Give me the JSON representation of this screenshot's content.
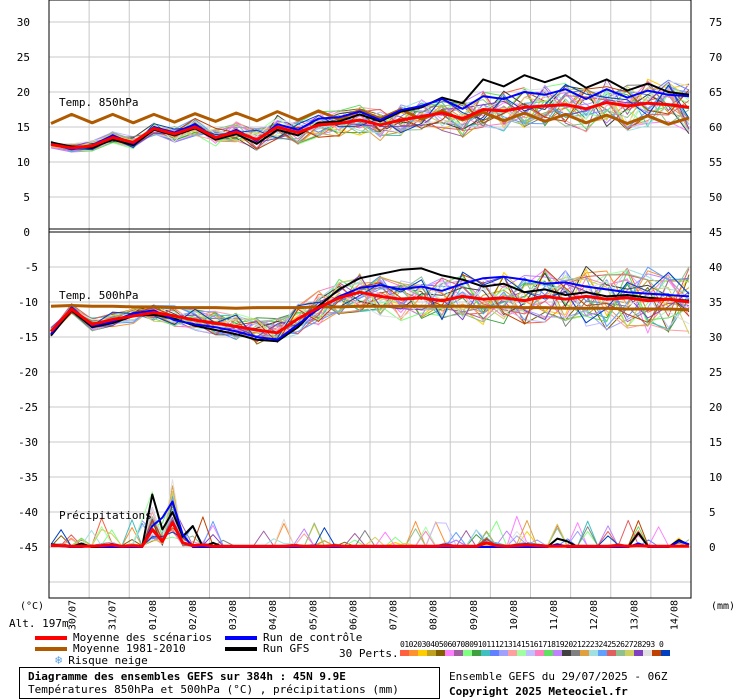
{
  "chart_data": {
    "type": "line",
    "title": "Diagramme des ensembles GEFS sur 384h : 45N 9.9E",
    "subtitle": "Températures 850hPa et 500hPa (°C) , précipitations (mm)",
    "left_axis_unit": "(°C)",
    "right_axis_unit": "(mm)",
    "altitude": "Alt. 197m",
    "left_ticks_top": [
      "30",
      "25",
      "20",
      "15",
      "10",
      "5",
      "0"
    ],
    "left_ticks_bottom": [
      "-5",
      "-10",
      "-15",
      "-20",
      "-25",
      "-30",
      "-35",
      "-40",
      "-45"
    ],
    "right_ticks_top": [
      "75",
      "70",
      "65",
      "60",
      "55",
      "50",
      "45"
    ],
    "right_ticks_bottom": [
      "40",
      "35",
      "30",
      "25",
      "20",
      "15",
      "10",
      "5",
      "0"
    ],
    "x_labels": [
      "30/07",
      "31/07",
      "01/08",
      "02/08",
      "03/08",
      "04/08",
      "05/08",
      "06/08",
      "07/08",
      "08/08",
      "09/08",
      "10/08",
      "11/08",
      "12/08",
      "13/08",
      "14/08"
    ],
    "panel_labels": {
      "t850": "Temp. 850hPa",
      "t500": "Temp. 500hPa",
      "precip": "Précipitations"
    },
    "series": [
      {
        "name": "Moyenne des scénarios",
        "group": "t850",
        "values": [
          12.5,
          12,
          12.3,
          13.5,
          12.8,
          14.8,
          14,
          15,
          13.5,
          14.3,
          13.2,
          15,
          14.2,
          15.3,
          15.5,
          16,
          15.3,
          16,
          16.5,
          17,
          16.2,
          17.5,
          17.3,
          17.8,
          18,
          18.2,
          17.6,
          18.5,
          18,
          18.4,
          18.2,
          17.8
        ]
      },
      {
        "name": "Moyenne 1981-2010",
        "group": "t850",
        "values": [
          15.5,
          16.8,
          15.6,
          16.8,
          15.6,
          16.8,
          15.7,
          16.9,
          15.8,
          17,
          15.9,
          17.2,
          16,
          17.3,
          16.1,
          17.4,
          16.2,
          17.5,
          16.1,
          17.3,
          16,
          17.1,
          15.9,
          17,
          15.8,
          16.8,
          15.6,
          16.7,
          15.5,
          16.6,
          15.4,
          16.3
        ]
      },
      {
        "name": "Run de contrôle",
        "group": "t850",
        "values": [
          12.6,
          11.8,
          12.4,
          13.8,
          12.6,
          15,
          14.2,
          15.4,
          13.4,
          14.6,
          13,
          15.4,
          14.6,
          16.2,
          16.4,
          17.2,
          16,
          17.4,
          18,
          19,
          17.6,
          19.4,
          19,
          20,
          19.6,
          20.4,
          19,
          20.4,
          19.2,
          20.2,
          19.6,
          19.4
        ]
      },
      {
        "name": "Run GFS",
        "group": "t850",
        "values": [
          12.8,
          12.2,
          12,
          13.2,
          12.4,
          14.6,
          13.8,
          14.8,
          13.2,
          14,
          12.6,
          14.6,
          13.8,
          15.6,
          15.8,
          16.8,
          15.8,
          17.2,
          17.8,
          19.2,
          18.4,
          21.8,
          20.8,
          22.4,
          21.4,
          22.4,
          20.6,
          21.8,
          20.2,
          21.2,
          20,
          19.6
        ]
      },
      {
        "name": "Moyenne des scénarios",
        "group": "t500",
        "values": [
          -14.2,
          -11,
          -13.2,
          -12.5,
          -12,
          -11.5,
          -12,
          -12.6,
          -13,
          -13.5,
          -14,
          -14.4,
          -12.4,
          -10.8,
          -9.4,
          -8.6,
          -9.2,
          -9.6,
          -9.4,
          -9.8,
          -9.2,
          -9.6,
          -9.4,
          -9.8,
          -9.2,
          -9.6,
          -9.2,
          -9.6,
          -9.4,
          -9.8,
          -9.6,
          -10
        ]
      },
      {
        "name": "Moyenne 1981-2010",
        "group": "t500",
        "values": [
          -10.6,
          -10.5,
          -10.6,
          -10.6,
          -10.7,
          -10.7,
          -10.8,
          -10.8,
          -10.8,
          -10.9,
          -10.8,
          -10.8,
          -10.8,
          -10.7,
          -10.7,
          -10.6,
          -10.6,
          -10.6,
          -10.6,
          -10.6,
          -10.6,
          -10.7,
          -10.7,
          -10.8,
          -10.8,
          -10.9,
          -10.9,
          -10.9,
          -11,
          -11,
          -11,
          -11.1
        ]
      },
      {
        "name": "Run de contrôle",
        "group": "t500",
        "values": [
          -14.6,
          -10.8,
          -13.4,
          -12.8,
          -11.6,
          -11.2,
          -12.6,
          -13.2,
          -13.6,
          -14.2,
          -15,
          -15.4,
          -13.2,
          -11,
          -9.2,
          -8,
          -7.6,
          -8.2,
          -7.8,
          -8.4,
          -7.4,
          -6.6,
          -6.4,
          -6.8,
          -7.4,
          -7.2,
          -7.8,
          -8.2,
          -8.6,
          -8.8,
          -9,
          -9.2
        ]
      },
      {
        "name": "Run GFS",
        "group": "t500",
        "values": [
          -14.8,
          -11.2,
          -13.6,
          -13,
          -12,
          -11.8,
          -12.4,
          -13.4,
          -14,
          -14.6,
          -15.4,
          -15.6,
          -13.6,
          -10.6,
          -8.2,
          -6.6,
          -6,
          -5.4,
          -5.2,
          -6.2,
          -6.8,
          -7.8,
          -7.4,
          -8.6,
          -8.2,
          -9,
          -8.6,
          -9.2,
          -9,
          -9.4,
          -9.6,
          -9.8
        ]
      },
      {
        "name": "Moyenne des scénarios",
        "group": "precip",
        "values": [
          0.2,
          0.2,
          0.1,
          0.1,
          0.1,
          0.2,
          0.3,
          0.1,
          0.2,
          0.1,
          2.5,
          0.8,
          3.5,
          0.6,
          0.2,
          0.3,
          0.1,
          0.1,
          0.1,
          0.1,
          0.1,
          0.1,
          0.1,
          0.1,
          0.2,
          0.1,
          0.1,
          0.1,
          0.2,
          0.1,
          0.1,
          0.1,
          0.1,
          0.1,
          0.1,
          0.1,
          0.1,
          0.1,
          0.1,
          0.2,
          0.1,
          0.1,
          0.1,
          0.6,
          0.2,
          0.1,
          0.2,
          0.3,
          0.2,
          0.1,
          0.1,
          0.1,
          0.1,
          0.1,
          0.1,
          0.1,
          0.2,
          0.1,
          0.2,
          0.1,
          0.1,
          0.1,
          0.1,
          0.1
        ]
      },
      {
        "name": "Run GFS",
        "group": "precip",
        "values": [
          0.4,
          0.2,
          0,
          0.5,
          0,
          0,
          0.3,
          0,
          0,
          0,
          7.5,
          2.5,
          5,
          1.5,
          3,
          0,
          0.6,
          0,
          0,
          0,
          0,
          0,
          0,
          0,
          0,
          0,
          0,
          0,
          0,
          0,
          0,
          0,
          0,
          0,
          0,
          0,
          0,
          0,
          0,
          0,
          0,
          0,
          0,
          0,
          0,
          0,
          0,
          0,
          0,
          0,
          1.2,
          0.8,
          0,
          0,
          0,
          0,
          0,
          0,
          2,
          0,
          0,
          0,
          1,
          0.3
        ]
      },
      {
        "name": "Run de contrôle",
        "group": "precip",
        "values": [
          0.3,
          0.1,
          0,
          0,
          0.2,
          0,
          0,
          0,
          0,
          0,
          3,
          4.2,
          6.5,
          1.8,
          0,
          0,
          0,
          0,
          0,
          0,
          0,
          0,
          0,
          0,
          0,
          0,
          0,
          0,
          0,
          0,
          0,
          0,
          0,
          0,
          0,
          0,
          0,
          0,
          0,
          0,
          0,
          0,
          0,
          0,
          0,
          0,
          0,
          0,
          0,
          0,
          0.4,
          0,
          0,
          0,
          0,
          0,
          0,
          0,
          0.5,
          0,
          0,
          0,
          0.8,
          0.4
        ]
      }
    ],
    "y_ranges": {
      "t850": [
        0,
        30
      ],
      "t500": [
        -45,
        -5
      ],
      "precip_mm": [
        0,
        45
      ]
    },
    "grid": true
  },
  "legend": {
    "mean_scen": "Moyenne des scénarios",
    "clim": "Moyenne 1981-2010",
    "snow": "Risque neige",
    "control": "Run de contrôle",
    "gfs": "Run GFS",
    "perts": "30 Perts.",
    "pert_numbers": "01020304050607080910111213141516171819202122232425262728293 0",
    "colors": {
      "mean_scen": "#ff0000",
      "clim": "#b05a00",
      "control": "#0000ff",
      "gfs": "#000000",
      "snow": "#5aa0e0"
    }
  },
  "pert_colors": [
    "#ff6040",
    "#ff9030",
    "#ffcc00",
    "#c0a020",
    "#806000",
    "#ff80ff",
    "#a060a0",
    "#80ff80",
    "#40a040",
    "#40c0c0",
    "#6080ff",
    "#a0a0ff",
    "#ffa0a0",
    "#a0ffa0",
    "#c0c0ff",
    "#ff80c0",
    "#60e060",
    "#c080ff",
    "#404040",
    "#808080",
    "#e0a040",
    "#a0e0e0",
    "#60a0ff",
    "#e06060",
    "#90c090",
    "#d0d060",
    "#8040c0",
    "#e0e0e0",
    "#c04000",
    "#0040c0"
  ],
  "footer": {
    "title": "Diagramme des ensembles GEFS sur 384h : 45N 9.9E",
    "subtitle": "Températures 850hPa et 500hPa (°C) , précipitations (mm)",
    "run": "Ensemble GEFS du 29/07/2025 - 06Z",
    "copyright": "Copyright 2025 Meteociel.fr"
  }
}
